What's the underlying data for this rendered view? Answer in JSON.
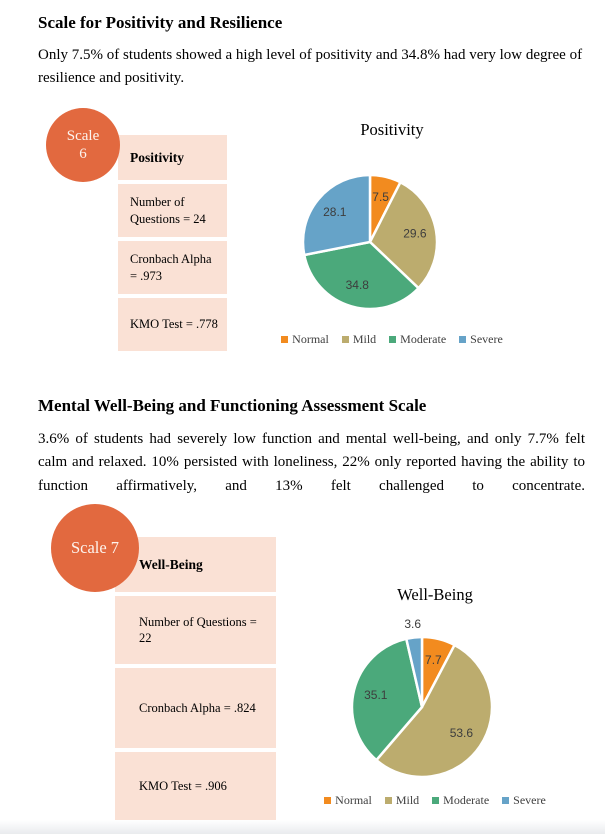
{
  "sections": [
    {
      "heading": "Scale for Positivity and Resilience",
      "paragraph": "Only 7.5% of students showed a high level of positivity and 34.8% had very low degree of resilience and positivity.",
      "badge": {
        "line1": "Scale",
        "line2": "6"
      },
      "table": {
        "title": "Positivity",
        "rows": [
          "Number of Questions = 24",
          "Cronbach Alpha = .973",
          "KMO Test = .778"
        ]
      }
    },
    {
      "heading": "Mental Well-Being and Functioning Assessment Scale",
      "paragraph": "3.6% of students had severely low function and mental well-being, and only 7.7% felt calm and relaxed. 10% persisted with loneliness, 22% only reported having the ability to function affirmatively, and 13% felt challenged to concentrate.",
      "badge": {
        "line1": "Scale 7",
        "line2": ""
      },
      "table": {
        "title": "Well-Being",
        "rows": [
          "Number of Questions = 22",
          "Cronbach Alpha = .824",
          "KMO Test = .906"
        ]
      }
    }
  ],
  "chart_data": [
    {
      "type": "pie",
      "title": "Positivity",
      "categories": [
        "Normal",
        "Mild",
        "Moderate",
        "Severe"
      ],
      "values": [
        7.5,
        29.6,
        34.8,
        28.1
      ],
      "colors": [
        "#f28b1f",
        "#bcac6e",
        "#4ba97b",
        "#66a3c8"
      ],
      "data_labels": [
        "7.5",
        "29.6",
        "34.8",
        "28.1"
      ],
      "start_angle": 0,
      "direction": "clockwise",
      "legend_position": "bottom"
    },
    {
      "type": "pie",
      "title": "Well-Being",
      "categories": [
        "Normal",
        "Mild",
        "Moderate",
        "Severe"
      ],
      "values": [
        7.7,
        53.6,
        35.1,
        3.6
      ],
      "colors": [
        "#f28b1f",
        "#bcac6e",
        "#4ba97b",
        "#66a3c8"
      ],
      "data_labels": [
        "7.7",
        "53.6",
        "35.1",
        "3.6"
      ],
      "start_angle": 0,
      "direction": "clockwise",
      "legend_position": "bottom"
    }
  ]
}
